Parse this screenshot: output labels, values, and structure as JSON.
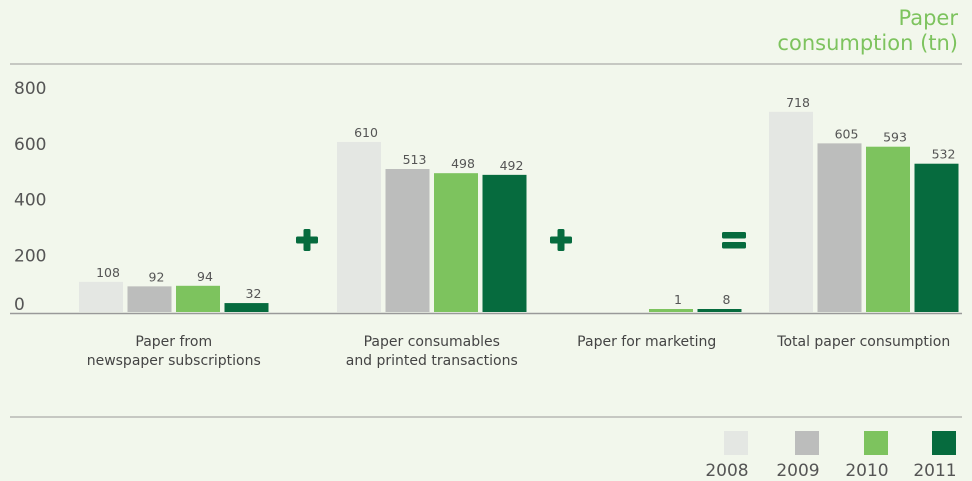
{
  "chart_data": {
    "type": "bar",
    "title_lines": [
      "Paper",
      "consumption (tn)"
    ],
    "ylim": [
      0,
      800
    ],
    "yticks": [
      0,
      200,
      400,
      600,
      800
    ],
    "grid": false,
    "legend_position": "bottom-right",
    "groups": [
      {
        "label_lines": [
          "Paper from",
          "newspaper subscriptions"
        ],
        "values": [
          108,
          92,
          94,
          32
        ]
      },
      {
        "label_lines": [
          "Paper consumables",
          "and printed transactions"
        ],
        "values": [
          610,
          513,
          498,
          492
        ]
      },
      {
        "label_lines": [
          "Paper for marketing"
        ],
        "values": [
          null,
          null,
          1,
          8
        ]
      },
      {
        "label_lines": [
          "Total paper consumption"
        ],
        "values": [
          718,
          605,
          593,
          532
        ]
      }
    ],
    "operators": [
      "+",
      "+",
      "="
    ],
    "series": [
      {
        "name": "2008",
        "color": "#e4e7e3"
      },
      {
        "name": "2009",
        "color": "#bcbdbc"
      },
      {
        "name": "2010",
        "color": "#7dc35e"
      },
      {
        "name": "2011",
        "color": "#066b3e"
      }
    ]
  },
  "colors": {
    "axis": "#999999",
    "tick_text": "#555555",
    "label_text": "#444444",
    "operator": "#066b3e",
    "title": "#7dc35e"
  }
}
